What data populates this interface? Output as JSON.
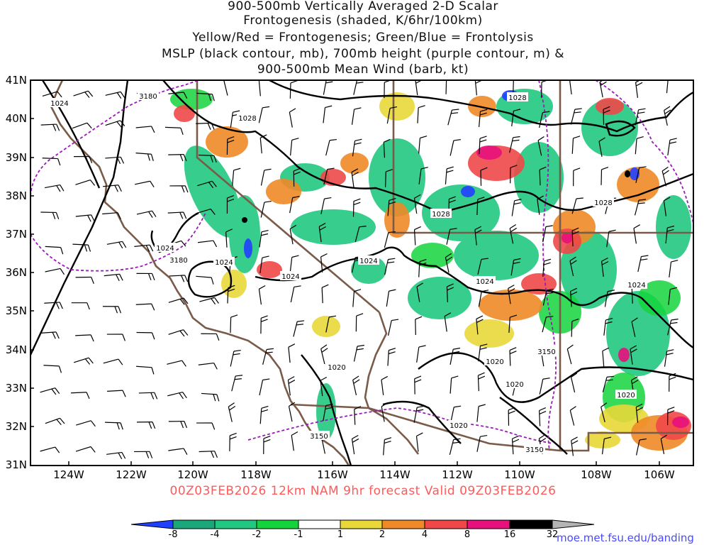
{
  "title": {
    "line1": "900-500mb Vertically Averaged 2-D Scalar",
    "line2": "Frontogenesis (shaded, K/6hr/100km)",
    "line3": "Yellow/Red = Frontogenesis;  Green/Blue = Frontolysis",
    "line4": "MSLP (black contour, mb), 700mb height (purple contour, m) &",
    "line5": "900-500mb Mean Wind (barb, kt)"
  },
  "valid_text": "00Z03FEB2026 12km NAM 9hr forecast Valid 09Z03FEB2026",
  "credit": "moe.met.fsu.edu/banding",
  "axes": {
    "lat_labels": [
      "41N",
      "40N",
      "39N",
      "38N",
      "37N",
      "36N",
      "35N",
      "34N",
      "33N",
      "32N",
      "31N"
    ],
    "lon_labels": [
      "124W",
      "122W",
      "120W",
      "118W",
      "116W",
      "114W",
      "112W",
      "110W",
      "108W",
      "106W"
    ]
  },
  "colorbar": {
    "labels": [
      "-8",
      "-4",
      "-2",
      "-1",
      "1",
      "2",
      "4",
      "8",
      "16",
      "32"
    ],
    "colors": [
      "#2040ff",
      "#1aa87a",
      "#22c880",
      "#14d43c",
      "#ffffff",
      "#e8d838",
      "#f08a28",
      "#f04848",
      "#e8107c",
      "#000000",
      "#b4b4b4"
    ]
  },
  "contours": {
    "mslp_labels": [
      "1024",
      "1028",
      "1028",
      "1028",
      "1028",
      "1024",
      "1024",
      "1024",
      "1024",
      "1024",
      "1024",
      "1020",
      "1020",
      "1020",
      "1020",
      "1020"
    ],
    "height_labels": [
      "3180",
      "3180",
      "3150",
      "3150",
      "3150"
    ]
  },
  "colors": {
    "mslp": "#000000",
    "height": "#9a1ab8",
    "borders": "#7a5a48",
    "valid_text": "#ff5a5a",
    "credit": "#4a4aff"
  }
}
